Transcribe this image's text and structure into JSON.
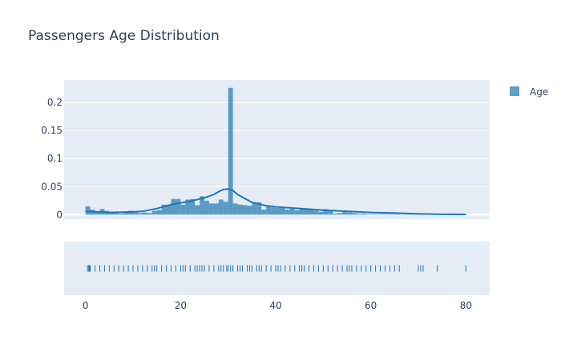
{
  "chart_data": {
    "type": "histogram+density+rug",
    "title": "Passengers Age Distribution",
    "legend": {
      "placement": "top-right",
      "entries": [
        "Age"
      ]
    },
    "colors": {
      "series": "#1f77b4",
      "plot_bg": "#e5ecf6",
      "text": "#2a3f5f",
      "grid": "#ffffff"
    },
    "x_axis": {
      "range": [
        -4.5,
        85
      ],
      "ticks": [
        0,
        20,
        40,
        60,
        80
      ]
    },
    "y_axis": {
      "range": [
        -0.008,
        0.24
      ],
      "ticks": [
        0,
        0.05,
        0.1,
        0.15,
        0.2
      ],
      "tick_labels": [
        "0",
        "0.05",
        "0.1",
        "0.15",
        "0.2"
      ]
    },
    "grid": true,
    "series": [
      {
        "name": "Age",
        "type": "histogram",
        "bin_width": 1,
        "bin_start": 0,
        "values": [
          0.015,
          0.009,
          0.006,
          0.01,
          0.007,
          0.005,
          0.003,
          0.002,
          0.004,
          0.007,
          0.004,
          0.003,
          0.004,
          0.003,
          0.007,
          0.008,
          0.018,
          0.016,
          0.028,
          0.028,
          0.018,
          0.027,
          0.028,
          0.017,
          0.033,
          0.025,
          0.02,
          0.02,
          0.027,
          0.023,
          0.226,
          0.02,
          0.018,
          0.017,
          0.016,
          0.02,
          0.022,
          0.009,
          0.015,
          0.013,
          0.012,
          0.014,
          0.009,
          0.012,
          0.008,
          0.012,
          0.009,
          0.009,
          0.007,
          0.005,
          0.01,
          0.007,
          0.002,
          0.003,
          0.006,
          0.004,
          0.003,
          0.002,
          0.002,
          0.001,
          0.001,
          0.001,
          0.001,
          0.001,
          0.001,
          0.001,
          0.0005,
          0.0005,
          0.0005,
          0.0005,
          0.001,
          0.0005,
          0.0005,
          0.0005,
          0.0005,
          0.0005,
          0.0005,
          0.0005,
          0.0005,
          0.001
        ]
      },
      {
        "name": "Age",
        "type": "density",
        "x": [
          0,
          5,
          10,
          12,
          15,
          18,
          20,
          22,
          25,
          27,
          28,
          29,
          30,
          31,
          32,
          35,
          38,
          40,
          45,
          50,
          55,
          60,
          65,
          70,
          75,
          80
        ],
        "y": [
          0.006,
          0.004,
          0.005,
          0.006,
          0.011,
          0.018,
          0.021,
          0.024,
          0.03,
          0.036,
          0.041,
          0.045,
          0.046,
          0.043,
          0.036,
          0.022,
          0.016,
          0.014,
          0.011,
          0.008,
          0.006,
          0.004,
          0.003,
          0.0015,
          0.0008,
          0.0005
        ]
      },
      {
        "name": "Age",
        "type": "rug",
        "values": [
          0.42,
          0.67,
          0.75,
          0.83,
          0.92,
          1,
          2,
          3,
          4,
          5,
          6,
          7,
          8,
          9,
          10,
          11,
          12,
          13,
          14,
          14.5,
          15,
          16,
          17,
          18,
          19,
          20,
          20.5,
          21,
          22,
          23,
          23.5,
          24,
          24.5,
          25,
          26,
          27,
          28,
          28.5,
          29,
          29.7,
          30,
          30.5,
          31,
          32,
          32.5,
          33,
          34,
          34.5,
          35,
          36,
          36.5,
          37,
          38,
          39,
          40,
          40.5,
          41,
          42,
          43,
          44,
          45,
          45.5,
          46,
          47,
          48,
          49,
          50,
          51,
          52,
          53,
          54,
          55,
          55.5,
          56,
          57,
          58,
          59,
          60,
          61,
          62,
          63,
          64,
          65,
          66,
          70,
          70.5,
          71,
          74,
          80
        ]
      }
    ]
  }
}
